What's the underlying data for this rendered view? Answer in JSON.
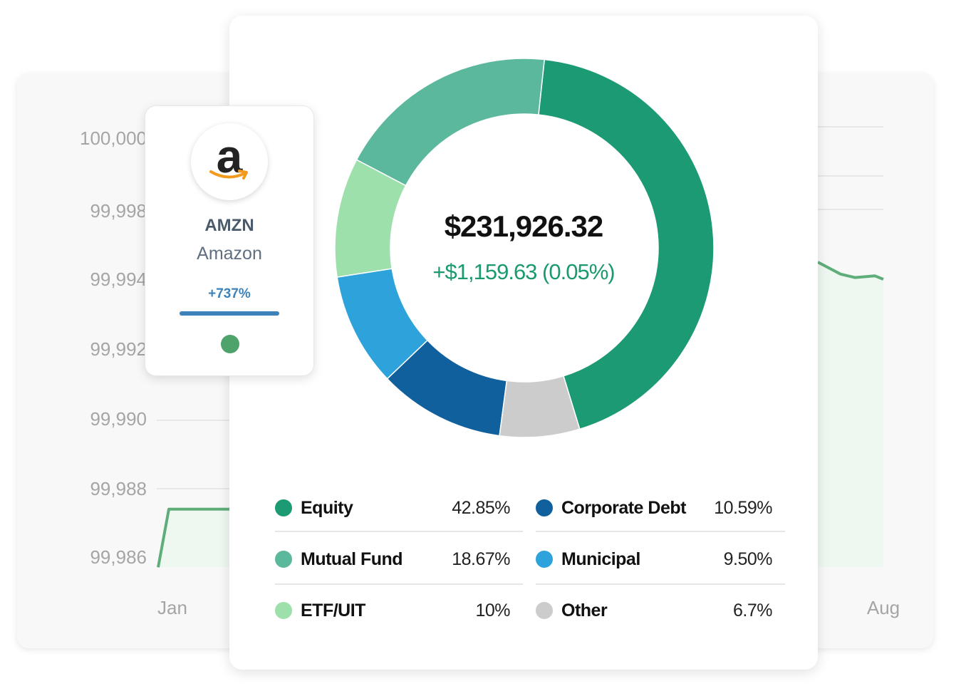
{
  "colors": {
    "line": "#5fae7a",
    "area": "#eef8f0",
    "grid": "#e2e2e2",
    "axis_text": "#a5a5a5",
    "change_positive": "#1b9a6f"
  },
  "line_chart": {
    "type": "line",
    "y_ticks": [
      "100,000",
      "99,998",
      "99,994",
      "99,992",
      "99,990",
      "99,988",
      "99,986"
    ],
    "x_ticks": [
      "Jan",
      "Aug"
    ],
    "segment_start": [
      99985.7,
      99987.4,
      99987.4,
      99987.4
    ],
    "segment_end": [
      99995.0,
      99994.3,
      99994.1,
      99994.2,
      99994.0
    ]
  },
  "portfolio": {
    "total": "$231,926.32",
    "change": "+$1,159.63 (0.05%)"
  },
  "chart_data": {
    "type": "pie",
    "style": "donut",
    "categories": [
      "Equity",
      "Mutual Fund",
      "ETF/UIT",
      "Municipal",
      "Corporate Debt",
      "Other"
    ],
    "values": [
      42.85,
      18.67,
      10,
      9.5,
      10.59,
      6.7
    ],
    "colors": [
      "#1b9a73",
      "#5cb89d",
      "#9ee0ab",
      "#2ea3db",
      "#11609e",
      "#cccccc"
    ]
  },
  "legend": [
    {
      "label": "Equity",
      "value": "42.85%",
      "color": "#1b9a73"
    },
    {
      "label": "Mutual Fund",
      "value": "18.67%",
      "color": "#5cb89d"
    },
    {
      "label": "ETF/UIT",
      "value": "10%",
      "color": "#9ee0ab"
    },
    {
      "label": "Corporate Debt",
      "value": "10.59%",
      "color": "#11609e"
    },
    {
      "label": "Municipal",
      "value": "9.50%",
      "color": "#2ea3db"
    },
    {
      "label": "Other",
      "value": "6.7%",
      "color": "#cccccc"
    }
  ],
  "stock": {
    "logo_letter": "a",
    "ticker": "AMZN",
    "name": "Amazon",
    "change": "+737%",
    "progress": 1.0,
    "status_color": "#4ea36a"
  }
}
